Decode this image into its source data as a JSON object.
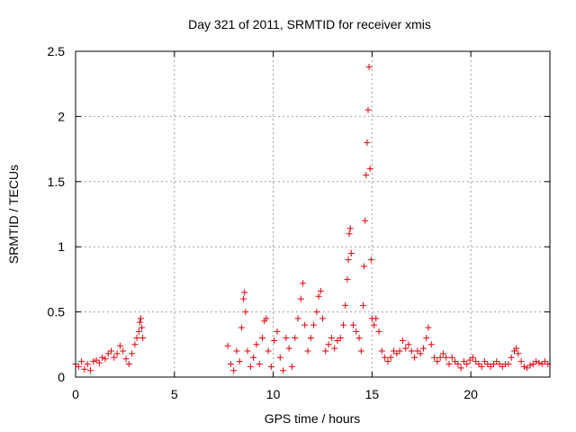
{
  "chart_data": {
    "type": "scatter",
    "title": "Day 321 of 2011, SRMTID for receiver xmis",
    "xlabel": "GPS time / hours",
    "ylabel": "SRMTID / TECUs",
    "xlim": [
      0,
      24
    ],
    "ylim": [
      0,
      2.5
    ],
    "xticks": [
      0,
      5,
      10,
      15,
      20
    ],
    "xtick_labels": [
      "0",
      "5",
      "10",
      "15",
      "20"
    ],
    "yticks": [
      0,
      0.5,
      1,
      1.5,
      2,
      2.5
    ],
    "ytick_labels": [
      "0",
      "0.5",
      "1",
      "1.5",
      "2",
      "2.5"
    ],
    "grid": true,
    "marker": "+",
    "color": "#e8000b",
    "series": [
      {
        "name": "SRMTID",
        "points": [
          [
            0.0,
            0.1
          ],
          [
            0.15,
            0.08
          ],
          [
            0.3,
            0.12
          ],
          [
            0.45,
            0.06
          ],
          [
            0.6,
            0.1
          ],
          [
            0.75,
            0.05
          ],
          [
            0.9,
            0.12
          ],
          [
            1.05,
            0.13
          ],
          [
            1.2,
            0.11
          ],
          [
            1.35,
            0.15
          ],
          [
            1.5,
            0.14
          ],
          [
            1.65,
            0.18
          ],
          [
            1.8,
            0.2
          ],
          [
            1.95,
            0.15
          ],
          [
            2.1,
            0.18
          ],
          [
            2.25,
            0.24
          ],
          [
            2.4,
            0.2
          ],
          [
            2.55,
            0.14
          ],
          [
            2.7,
            0.1
          ],
          [
            2.85,
            0.18
          ],
          [
            3.0,
            0.25
          ],
          [
            3.1,
            0.3
          ],
          [
            3.2,
            0.35
          ],
          [
            3.25,
            0.42
          ],
          [
            3.3,
            0.45
          ],
          [
            3.35,
            0.38
          ],
          [
            3.4,
            0.3
          ],
          [
            7.7,
            0.24
          ],
          [
            7.85,
            0.1
          ],
          [
            8.0,
            0.05
          ],
          [
            8.15,
            0.2
          ],
          [
            8.3,
            0.12
          ],
          [
            8.4,
            0.38
          ],
          [
            8.5,
            0.6
          ],
          [
            8.55,
            0.65
          ],
          [
            8.6,
            0.5
          ],
          [
            8.7,
            0.2
          ],
          [
            8.85,
            0.08
          ],
          [
            9.0,
            0.15
          ],
          [
            9.15,
            0.25
          ],
          [
            9.3,
            0.1
          ],
          [
            9.45,
            0.3
          ],
          [
            9.55,
            0.43
          ],
          [
            9.65,
            0.45
          ],
          [
            9.75,
            0.2
          ],
          [
            9.9,
            0.08
          ],
          [
            10.05,
            0.28
          ],
          [
            10.2,
            0.35
          ],
          [
            10.35,
            0.15
          ],
          [
            10.5,
            0.05
          ],
          [
            10.65,
            0.3
          ],
          [
            10.8,
            0.22
          ],
          [
            10.95,
            0.08
          ],
          [
            11.1,
            0.3
          ],
          [
            11.25,
            0.45
          ],
          [
            11.4,
            0.6
          ],
          [
            11.5,
            0.72
          ],
          [
            11.6,
            0.4
          ],
          [
            11.75,
            0.2
          ],
          [
            11.9,
            0.3
          ],
          [
            12.05,
            0.4
          ],
          [
            12.2,
            0.5
          ],
          [
            12.3,
            0.62
          ],
          [
            12.4,
            0.66
          ],
          [
            12.5,
            0.45
          ],
          [
            12.65,
            0.2
          ],
          [
            12.8,
            0.25
          ],
          [
            12.95,
            0.3
          ],
          [
            13.1,
            0.22
          ],
          [
            13.25,
            0.28
          ],
          [
            13.4,
            0.3
          ],
          [
            13.55,
            0.4
          ],
          [
            13.65,
            0.55
          ],
          [
            13.75,
            0.75
          ],
          [
            13.8,
            0.9
          ],
          [
            13.85,
            1.1
          ],
          [
            13.9,
            1.14
          ],
          [
            13.95,
            0.95
          ],
          [
            14.05,
            0.4
          ],
          [
            14.2,
            0.35
          ],
          [
            14.35,
            0.3
          ],
          [
            14.45,
            0.2
          ],
          [
            14.55,
            0.55
          ],
          [
            14.6,
            0.85
          ],
          [
            14.65,
            1.2
          ],
          [
            14.7,
            1.55
          ],
          [
            14.75,
            1.8
          ],
          [
            14.8,
            2.05
          ],
          [
            14.85,
            2.38
          ],
          [
            14.9,
            1.6
          ],
          [
            14.95,
            0.9
          ],
          [
            15.0,
            0.45
          ],
          [
            15.1,
            0.4
          ],
          [
            15.2,
            0.45
          ],
          [
            15.35,
            0.35
          ],
          [
            15.5,
            0.2
          ],
          [
            15.65,
            0.15
          ],
          [
            15.8,
            0.12
          ],
          [
            15.95,
            0.15
          ],
          [
            16.1,
            0.2
          ],
          [
            16.25,
            0.18
          ],
          [
            16.4,
            0.2
          ],
          [
            16.55,
            0.28
          ],
          [
            16.7,
            0.22
          ],
          [
            16.85,
            0.25
          ],
          [
            17.0,
            0.2
          ],
          [
            17.15,
            0.15
          ],
          [
            17.3,
            0.2
          ],
          [
            17.45,
            0.18
          ],
          [
            17.6,
            0.22
          ],
          [
            17.75,
            0.3
          ],
          [
            17.85,
            0.38
          ],
          [
            18.0,
            0.25
          ],
          [
            18.15,
            0.15
          ],
          [
            18.3,
            0.12
          ],
          [
            18.45,
            0.15
          ],
          [
            18.6,
            0.18
          ],
          [
            18.75,
            0.15
          ],
          [
            18.9,
            0.1
          ],
          [
            19.05,
            0.15
          ],
          [
            19.2,
            0.12
          ],
          [
            19.35,
            0.1
          ],
          [
            19.5,
            0.07
          ],
          [
            19.65,
            0.12
          ],
          [
            19.8,
            0.1
          ],
          [
            19.95,
            0.13
          ],
          [
            20.1,
            0.15
          ],
          [
            20.25,
            0.12
          ],
          [
            20.4,
            0.1
          ],
          [
            20.55,
            0.08
          ],
          [
            20.7,
            0.12
          ],
          [
            20.85,
            0.1
          ],
          [
            21.0,
            0.08
          ],
          [
            21.15,
            0.1
          ],
          [
            21.3,
            0.12
          ],
          [
            21.45,
            0.1
          ],
          [
            21.6,
            0.08
          ],
          [
            21.75,
            0.1
          ],
          [
            21.9,
            0.1
          ],
          [
            22.05,
            0.15
          ],
          [
            22.2,
            0.2
          ],
          [
            22.3,
            0.22
          ],
          [
            22.4,
            0.18
          ],
          [
            22.55,
            0.12
          ],
          [
            22.7,
            0.08
          ],
          [
            22.85,
            0.07
          ],
          [
            23.0,
            0.09
          ],
          [
            23.15,
            0.1
          ],
          [
            23.3,
            0.12
          ],
          [
            23.45,
            0.11
          ],
          [
            23.6,
            0.1
          ],
          [
            23.75,
            0.12
          ],
          [
            23.9,
            0.1
          ]
        ]
      }
    ]
  }
}
